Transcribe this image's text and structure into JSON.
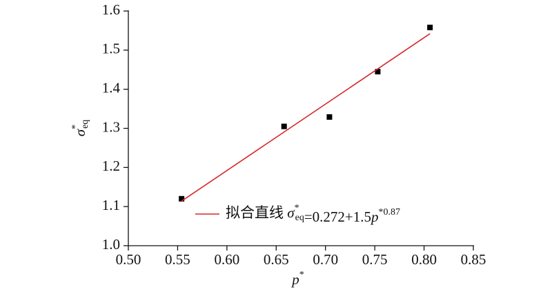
{
  "chart_data": {
    "type": "scatter",
    "x_label": "p*",
    "y_label": "σ*eq",
    "xlim": [
      0.5,
      0.85
    ],
    "xticks": [
      {
        "value": 0.5,
        "label": "0.50"
      },
      0.55,
      {
        "value": 0.6,
        "label": "0.60"
      },
      0.65,
      {
        "value": 0.7,
        "label": "0.70"
      },
      0.75,
      {
        "value": 0.8,
        "label": "0.80"
      },
      0.85
    ],
    "ylim": [
      1.0,
      1.6
    ],
    "yticks": [
      {
        "value": 1,
        "label": "1.0"
      },
      1.1,
      1.2,
      1.3,
      1.4,
      1.5,
      1.6
    ],
    "legend": "lower right",
    "series": [
      {
        "color": "#000000",
        "x": [
          0.554,
          0.658,
          0.704,
          0.753,
          0.806
        ],
        "values": [
          1.12,
          1.305,
          1.329,
          1.445,
          1.558
        ]
      },
      {
        "name": "拟合直线 σ*eq=0.272+1.5p*0.87",
        "color": "#d62728",
        "line": true,
        "x": [
          0.554,
          0.806
        ],
        "values": [
          1.114,
          1.542
        ]
      }
    ]
  }
}
